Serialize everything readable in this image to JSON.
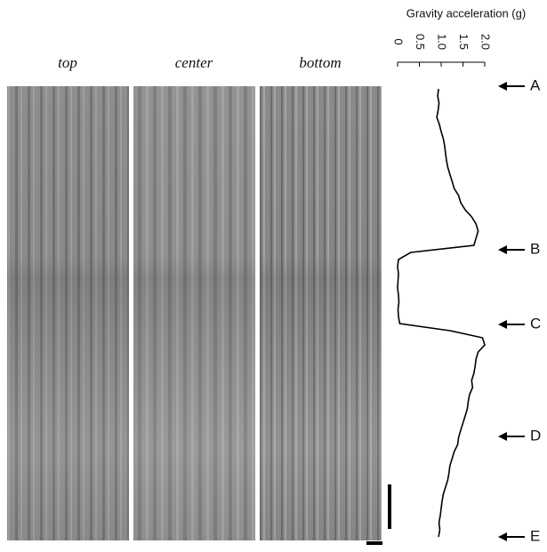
{
  "chart_data": {
    "type": "line",
    "title": "Gravity acceleration (g)",
    "panels": [
      "top",
      "center",
      "bottom"
    ],
    "annotations": [
      "A",
      "B",
      "C",
      "D",
      "E"
    ],
    "xlim": [
      0,
      2
    ],
    "xticks": [
      0,
      0.5,
      {
        "value": 1,
        "label": "1.0"
      },
      1.5,
      {
        "value": 2,
        "label": "2.0"
      }
    ],
    "color": "#000000",
    "values": [
      0.94,
      0.92,
      0.95,
      0.93,
      0.9,
      0.96,
      1.0,
      1.05,
      1.08,
      1.1,
      1.12,
      1.15,
      1.2,
      1.25,
      1.3,
      1.4,
      1.45,
      1.55,
      1.7,
      1.8,
      1.85,
      1.8,
      1.75,
      0.3,
      0.02,
      0,
      0.02,
      0.01,
      0,
      0.02,
      0.03,
      0.01,
      0.02,
      0.05,
      1.2,
      1.95,
      2.0,
      1.85,
      1.8,
      1.78,
      1.75,
      1.7,
      1.72,
      1.65,
      1.62,
      1.6,
      1.55,
      1.5,
      1.45,
      1.4,
      1.38,
      1.3,
      1.25,
      1.2,
      1.18,
      1.15,
      1.1,
      1.05,
      1.02,
      1.0,
      0.98,
      0.95,
      0.97,
      0.94
    ]
  }
}
